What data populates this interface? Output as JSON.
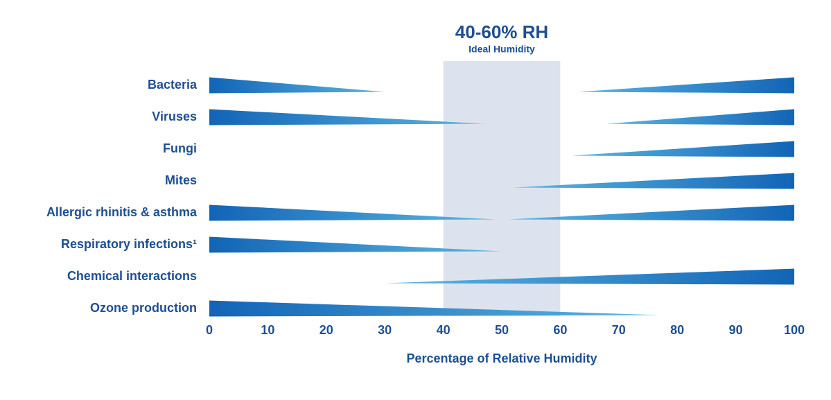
{
  "chart_data": {
    "type": "wedge",
    "band_title": "40-60% RH",
    "band_subtitle": "Ideal Humidity",
    "band": [
      40,
      60
    ],
    "x_label": "Percentage of Relative Humidity",
    "categories": [
      "Bacteria",
      "Viruses",
      "Fungi",
      "Mites",
      "Allergic rhinitis & asthma",
      "Respiratory infections¹",
      "Chemical interactions",
      "Ozone production"
    ],
    "low_end": [
      30,
      47,
      null,
      null,
      49,
      50,
      null,
      77
    ],
    "high_start": [
      63,
      68,
      62,
      52,
      51,
      null,
      30,
      null
    ],
    "xlim": [
      0,
      100
    ],
    "xticks": [
      0,
      10,
      20,
      30,
      40,
      50,
      60,
      70,
      80,
      90,
      100
    ],
    "colors": {
      "dark": "#1264b6",
      "light": "#5cb7e2",
      "band": "#dde3ee"
    }
  }
}
